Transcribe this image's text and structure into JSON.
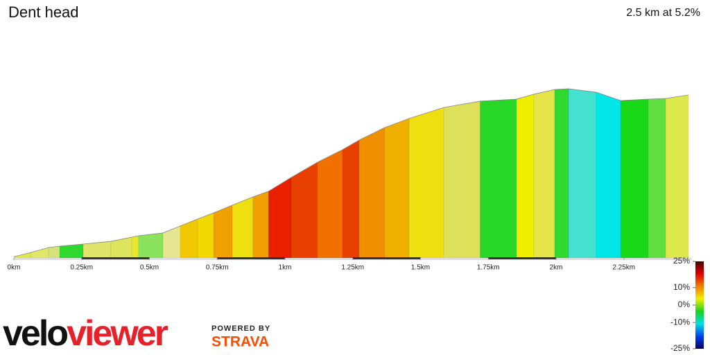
{
  "chart_data": {
    "type": "elevation-profile",
    "title": "Dent head",
    "subtitle": "2.5 km at 5.2%",
    "x": [
      0,
      0.064,
      0.128,
      0.169,
      0.256,
      0.358,
      0.435,
      0.46,
      0.55,
      0.614,
      0.678,
      0.737,
      0.806,
      0.882,
      0.939,
      1.023,
      1.12,
      1.212,
      1.274,
      1.368,
      1.458,
      1.586,
      1.72,
      1.854,
      1.918,
      1.995,
      2.046,
      2.148,
      2.238,
      2.34,
      2.404,
      2.488
    ],
    "y": [
      1,
      4.5,
      8.4,
      9.5,
      11.2,
      13.4,
      16.8,
      17.9,
      20.2,
      25.8,
      31.4,
      36.4,
      42.6,
      49.3,
      53.8,
      65,
      77.3,
      87.4,
      95.2,
      105.3,
      112.6,
      121.5,
      126.6,
      128.2,
      132.2,
      136.1,
      136.6,
      133.8,
      127.1,
      128.2,
      128.8,
      131.6
    ],
    "segment_colors": [
      "#dfe84a",
      "#e0e868",
      "#d6e17a",
      "#2ed82e",
      "#e1e46a",
      "#dde45e",
      "#e8e830",
      "#8ae35a",
      "#e6e690",
      "#f0c800",
      "#f0d800",
      "#f0a000",
      "#eee010",
      "#f0a000",
      "#e82000",
      "#e84000",
      "#f07000",
      "#e84000",
      "#f09000",
      "#f0b000",
      "#eee010",
      "#dee05a",
      "#28d828",
      "#eeee00",
      "#e4e448",
      "#30d830",
      "#44e0d0",
      "#00e6e6",
      "#18d818",
      "#60e040",
      "#dde84a"
    ],
    "xlim": [
      0,
      2.5
    ],
    "ylim": [
      0,
      140
    ],
    "xticks": [
      {
        "value": 0,
        "label": "0km"
      },
      {
        "value": 0.25,
        "label": "0.25km"
      },
      {
        "value": 0.5,
        "label": "0.5km"
      },
      {
        "value": 0.75,
        "label": "0.75km"
      },
      {
        "value": 1,
        "label": "1km"
      },
      {
        "value": 1.25,
        "label": "1.25km"
      },
      {
        "value": 1.5,
        "label": "1.5km"
      },
      {
        "value": 1.75,
        "label": "1.75km"
      },
      {
        "value": 2,
        "label": "2km"
      },
      {
        "value": 2.25,
        "label": "2.25km"
      }
    ],
    "colorbar": {
      "lim": [
        -25,
        25
      ],
      "colors": [
        "#400000",
        "#e00000",
        "#f08000",
        "#eeee00",
        "#20d020",
        "#00e0e0",
        "#0040f0",
        "#000060"
      ],
      "ticks": [
        {
          "value": 25,
          "label": "25%"
        },
        {
          "value": 10,
          "label": "10%"
        },
        {
          "value": 0,
          "label": "0%"
        },
        {
          "value": -10,
          "label": "-10%"
        },
        {
          "value": -25,
          "label": "-25%"
        }
      ]
    }
  },
  "branding": {
    "logo_parts": [
      "velo",
      "viewer"
    ],
    "powered_by": "POWERED BY",
    "strava": "STRAVA"
  }
}
